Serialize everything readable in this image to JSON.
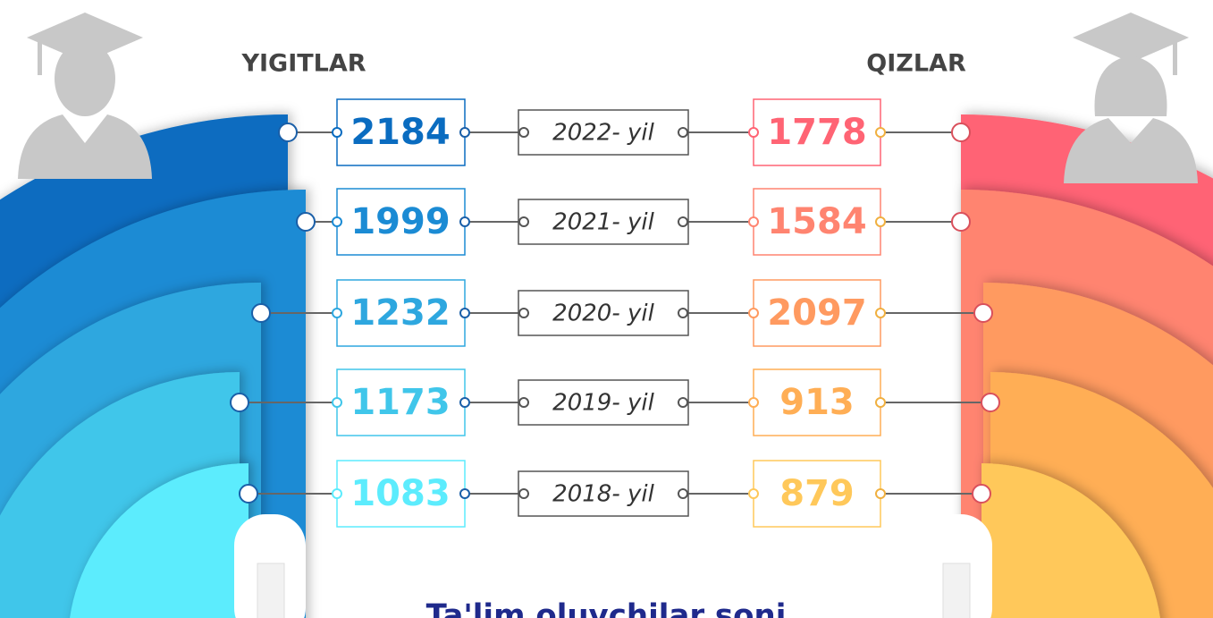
{
  "header": {
    "left": "YIGITLAR",
    "right": "QIZLAR"
  },
  "rows": [
    {
      "year": "2022- yil",
      "boys": 2184,
      "girls": 1778
    },
    {
      "year": "2021- yil",
      "boys": 1999,
      "girls": 1584
    },
    {
      "year": "2020- yil",
      "boys": 1232,
      "girls": 2097
    },
    {
      "year": "2019- yil",
      "boys": 1173,
      "girls": 913
    },
    {
      "year": "2018- yil",
      "boys": 1083,
      "girls": 879
    }
  ],
  "footer": "Ta'lim oluvchilar soni"
}
